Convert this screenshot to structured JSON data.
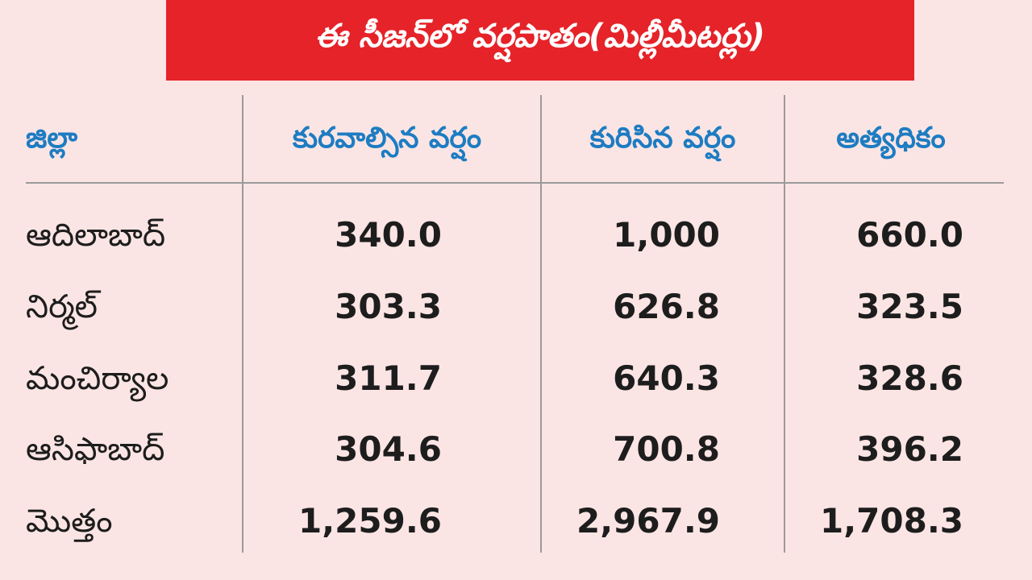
{
  "title": "ఈ సీజన్‌లో వర్షపాతం(మిల్లీమీటర్లు)",
  "table": {
    "header": [
      "జిల్లా",
      "కురవాల్సిన వర్షం",
      "కురిసిన వర్షం",
      "అత్యధికం"
    ],
    "rows": [
      [
        "ఆదిలాబాద్",
        "340.0",
        "1,000",
        "660.0"
      ],
      [
        "నిర్మల్",
        "303.3",
        "626.8",
        "323.5"
      ],
      [
        "మంచిర్యాల",
        "311.7",
        "640.3",
        "328.6"
      ],
      [
        "ఆసిఫాబాద్",
        "304.6",
        "700.8",
        "396.2"
      ],
      [
        "మొత్తం",
        "1,259.6",
        "2,967.9",
        "1,708.3"
      ]
    ]
  }
}
